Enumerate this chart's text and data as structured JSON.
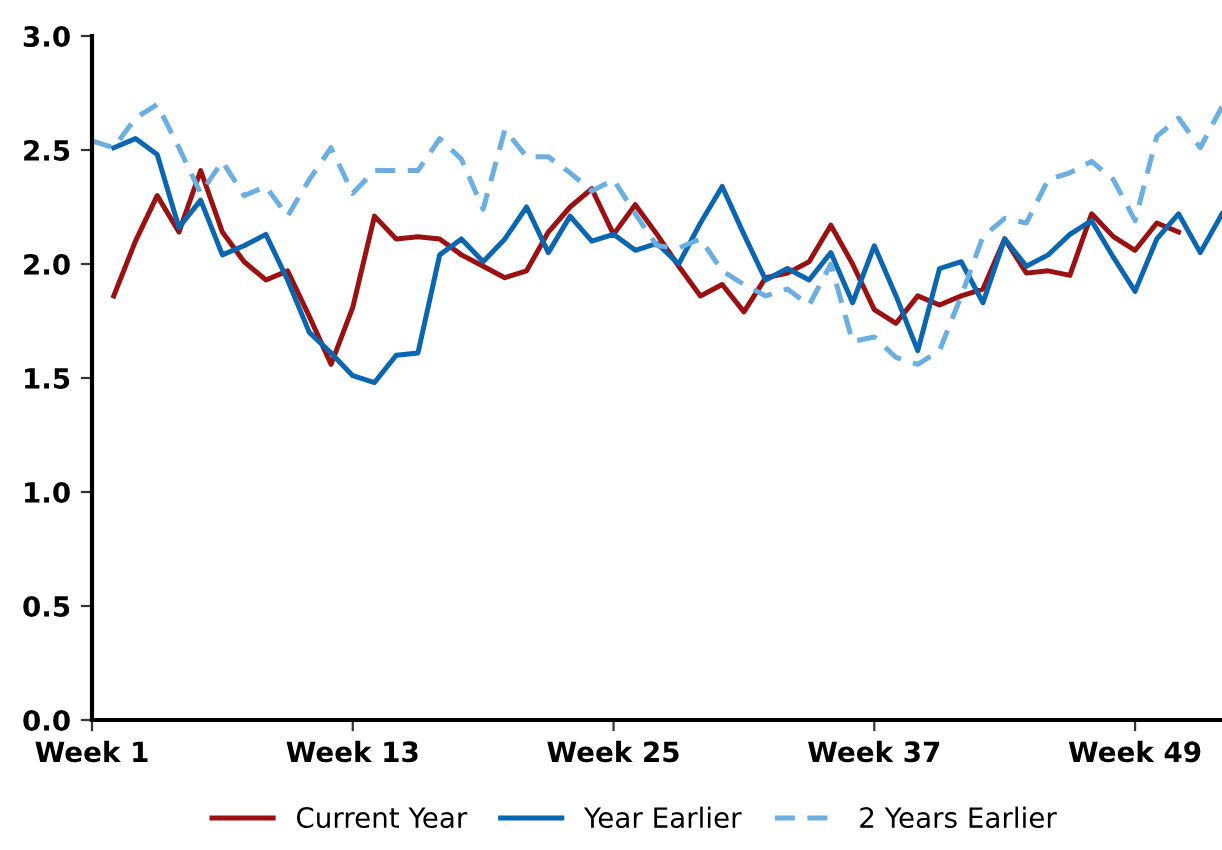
{
  "chart_data": {
    "type": "line",
    "categories": [
      "Week 1",
      null,
      null,
      null,
      null,
      null,
      null,
      null,
      null,
      null,
      null,
      null,
      "Week 13",
      null,
      null,
      null,
      null,
      null,
      null,
      null,
      null,
      null,
      null,
      null,
      "Week 25",
      null,
      null,
      null,
      null,
      null,
      null,
      null,
      null,
      null,
      null,
      null,
      "Week 37",
      null,
      null,
      null,
      null,
      null,
      null,
      null,
      null,
      null,
      null,
      null,
      "Week 49",
      null,
      null,
      null,
      null
    ],
    "series": [
      {
        "name": "Current Year",
        "color": "#9b1010",
        "line_style": "solid",
        "values": [
          null,
          1.86,
          2.1,
          2.3,
          2.14,
          2.41,
          2.14,
          2.01,
          1.93,
          1.97,
          1.77,
          1.56,
          1.81,
          2.21,
          2.11,
          2.12,
          2.11,
          2.04,
          1.99,
          1.94,
          1.97,
          2.14,
          2.25,
          2.33,
          2.13,
          2.26,
          2.13,
          1.99,
          1.86,
          1.91,
          1.79,
          1.94,
          1.96,
          2.01,
          2.17,
          2.0,
          1.8,
          1.74,
          1.86,
          1.82,
          1.86,
          1.89,
          2.11,
          1.96,
          1.97,
          1.95,
          2.22,
          2.12,
          2.06,
          2.18,
          2.14,
          null,
          null
        ]
      },
      {
        "name": "Year Earlier",
        "color": "#0a66b0",
        "line_style": "solid",
        "values": [
          null,
          2.51,
          2.55,
          2.48,
          2.16,
          2.28,
          2.04,
          2.08,
          2.13,
          1.93,
          1.7,
          1.61,
          1.51,
          1.48,
          1.6,
          1.61,
          2.04,
          2.11,
          2.01,
          2.11,
          2.25,
          2.05,
          2.21,
          2.1,
          2.13,
          2.06,
          2.09,
          2.0,
          2.18,
          2.34,
          2.13,
          1.93,
          1.98,
          1.93,
          2.05,
          1.83,
          2.08,
          1.86,
          1.62,
          1.98,
          2.01,
          1.83,
          2.11,
          1.99,
          2.04,
          2.13,
          2.19,
          2.03,
          1.88,
          2.11,
          2.22,
          2.05,
          2.22
        ]
      },
      {
        "name": "2 Years Earlier",
        "color": "#6aaee2",
        "line_style": "dashed",
        "values": [
          2.54,
          2.51,
          2.64,
          2.7,
          2.51,
          2.31,
          2.45,
          2.3,
          2.34,
          2.21,
          2.37,
          2.51,
          2.31,
          2.41,
          2.41,
          2.41,
          2.55,
          2.46,
          2.24,
          2.59,
          2.47,
          2.47,
          2.4,
          2.32,
          2.37,
          2.22,
          2.08,
          2.07,
          2.11,
          1.97,
          1.91,
          1.86,
          1.89,
          1.82,
          2.0,
          1.66,
          1.68,
          1.59,
          1.56,
          1.62,
          1.86,
          2.12,
          2.2,
          2.18,
          2.37,
          2.4,
          2.45,
          2.37,
          2.19,
          2.56,
          2.64,
          2.51,
          2.69
        ]
      }
    ],
    "ylim": [
      0,
      3
    ],
    "yticks": [
      {
        "value": 0,
        "label": "0.0"
      },
      {
        "value": 0.5,
        "label": "0.5"
      },
      {
        "value": 1,
        "label": "1.0"
      },
      {
        "value": 1.5,
        "label": "1.5"
      },
      {
        "value": 2,
        "label": "2.0"
      },
      {
        "value": 2.5,
        "label": "2.5"
      },
      {
        "value": 3,
        "label": "3.0"
      }
    ],
    "grid": false,
    "legend": "bottom"
  }
}
